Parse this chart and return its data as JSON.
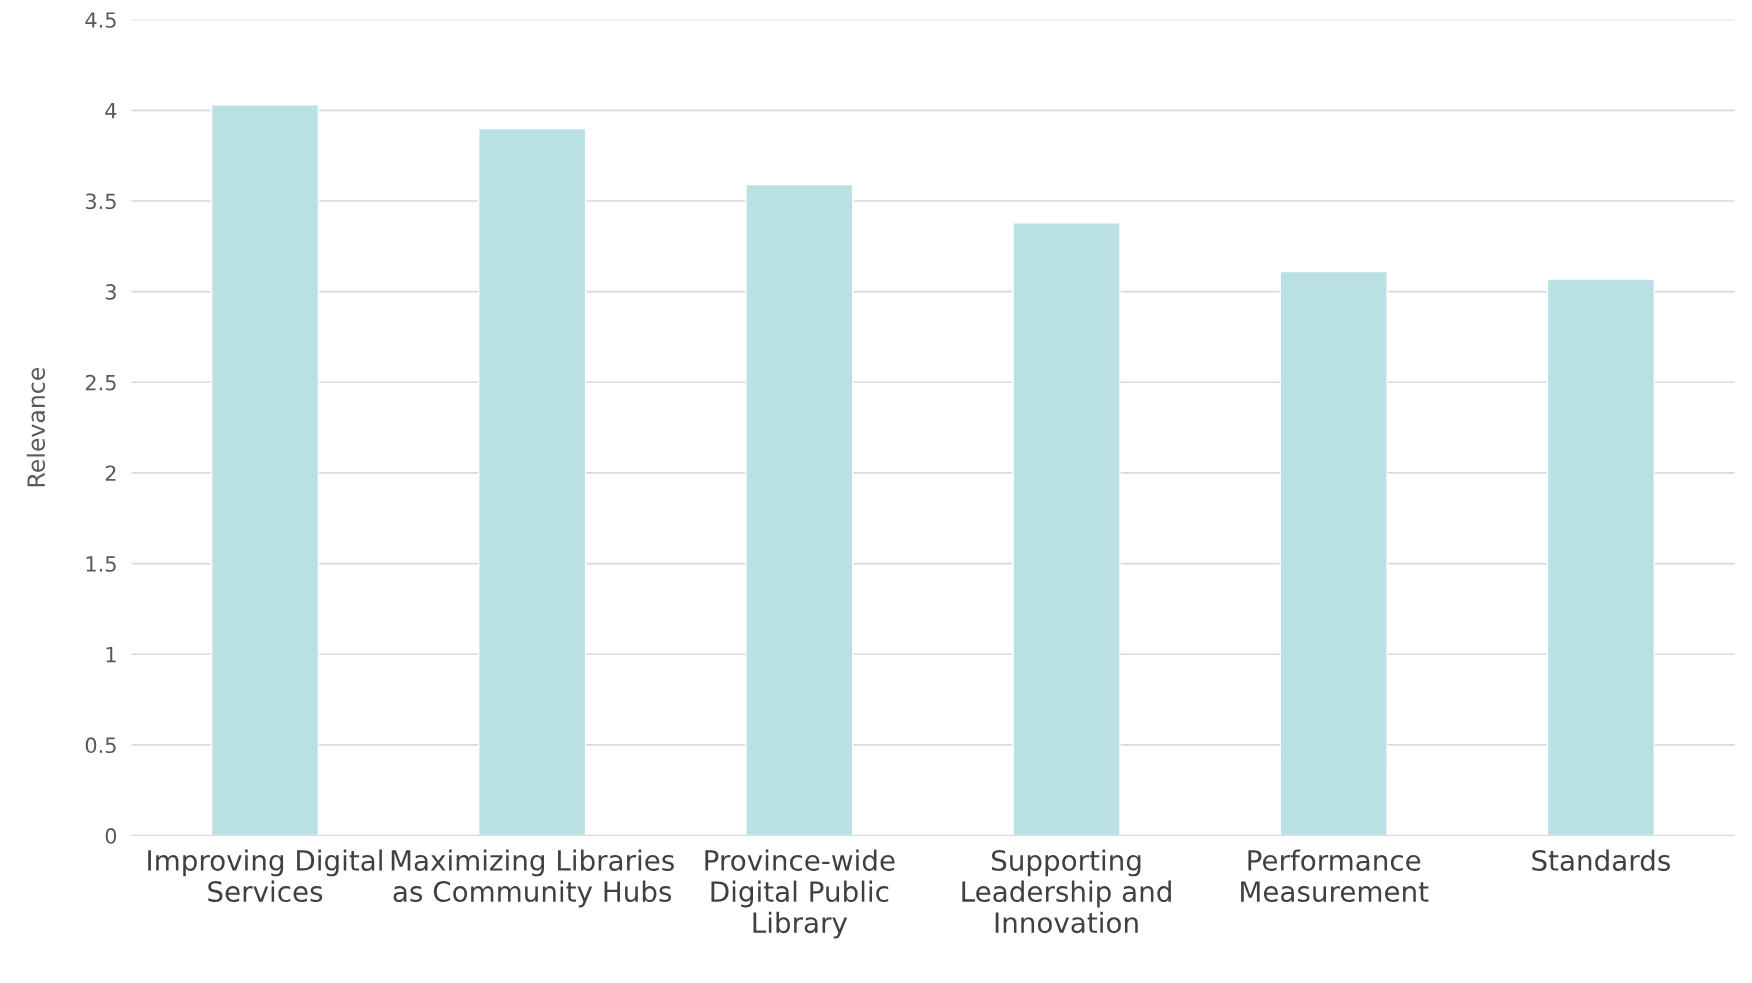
{
  "chart_data": {
    "type": "bar",
    "ylabel": "Relevance",
    "categories": [
      "Improving Digital Services",
      "Maximizing Libraries as Community Hubs",
      "Province-wide Digital Public Library",
      "Supporting Leadership and Innovation",
      "Performance Measurement",
      "Standards"
    ],
    "values": [
      4.03,
      3.9,
      3.59,
      3.38,
      3.11,
      3.07
    ],
    "color": "#b9e0e2",
    "ylim": [
      0,
      4.5
    ],
    "yticks": [
      0,
      0.5,
      1,
      1.5,
      2,
      2.5,
      3,
      3.5,
      4,
      4.5
    ],
    "grid": "y",
    "legend": false
  }
}
